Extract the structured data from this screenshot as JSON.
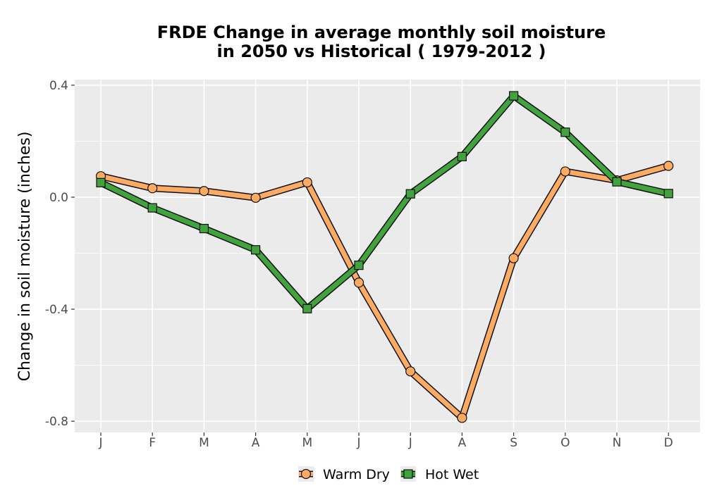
{
  "chart_data": {
    "type": "line",
    "title": [
      "FRDE  Change in average monthly soil moisture",
      "in 2050 vs Historical ( 1979-2012 )"
    ],
    "xlabel": "",
    "ylabel": "Change in soil moisture (inches)",
    "categories": [
      "J",
      "F",
      "M",
      "A",
      "M",
      "J",
      "J",
      "A",
      "S",
      "O",
      "N",
      "D"
    ],
    "ylim": [
      -0.84,
      0.42
    ],
    "y_ticks": [
      0.4,
      0.0,
      -0.4,
      -0.8
    ],
    "y_tick_labels": [
      "0.4",
      "0.0",
      "-0.4",
      "-0.8"
    ],
    "grid": true,
    "legend_position": "bottom",
    "series": [
      {
        "name": "Warm Dry",
        "marker": "circle",
        "color": "#fdaa63",
        "values": [
          0.075,
          0.032,
          0.022,
          -0.002,
          0.053,
          -0.305,
          -0.622,
          -0.788,
          -0.218,
          0.092,
          0.06,
          0.112
        ]
      },
      {
        "name": "Hot Wet",
        "marker": "square",
        "color": "#41a33d",
        "values": [
          0.052,
          -0.038,
          -0.112,
          -0.188,
          -0.398,
          -0.243,
          0.012,
          0.145,
          0.362,
          0.232,
          0.055,
          0.013
        ]
      }
    ]
  }
}
